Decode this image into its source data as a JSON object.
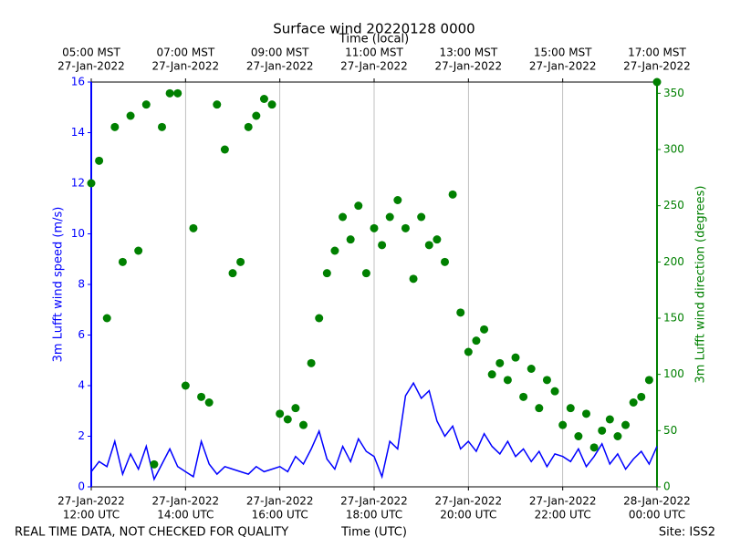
{
  "chart_data": {
    "type": "line-scatter",
    "title": "Surface wind 20220128 0000",
    "xlabel": "Time (UTC)",
    "x2label": "Time (local)",
    "ylabel": "3m Lufft wind speed (m/s)",
    "y2label": "3m Lufft wind direction (degrees)",
    "footer_left": "REAL TIME DATA, NOT CHECKED FOR QUALITY",
    "footer_right": "Site: ISS2",
    "grid": "x",
    "xlim": [
      "2022-01-27T12:00",
      "2022-01-28T00:00"
    ],
    "xticks": [
      {
        "value": "2022-01-27T12:00",
        "label": [
          "27-Jan-2022",
          "12:00 UTC"
        ]
      },
      {
        "value": "2022-01-27T14:00",
        "label": [
          "27-Jan-2022",
          "14:00 UTC"
        ]
      },
      {
        "value": "2022-01-27T16:00",
        "label": [
          "27-Jan-2022",
          "16:00 UTC"
        ]
      },
      {
        "value": "2022-01-27T18:00",
        "label": [
          "27-Jan-2022",
          "18:00 UTC"
        ]
      },
      {
        "value": "2022-01-27T20:00",
        "label": [
          "27-Jan-2022",
          "20:00 UTC"
        ]
      },
      {
        "value": "2022-01-27T22:00",
        "label": [
          "27-Jan-2022",
          "22:00 UTC"
        ]
      },
      {
        "value": "2022-01-28T00:00",
        "label": [
          "28-Jan-2022",
          "00:00 UTC"
        ]
      }
    ],
    "x2ticks": [
      {
        "value": "2022-01-27T12:00",
        "label": [
          "05:00 MST",
          "27-Jan-2022"
        ]
      },
      {
        "value": "2022-01-27T14:00",
        "label": [
          "07:00 MST",
          "27-Jan-2022"
        ]
      },
      {
        "value": "2022-01-27T16:00",
        "label": [
          "09:00 MST",
          "27-Jan-2022"
        ]
      },
      {
        "value": "2022-01-27T18:00",
        "label": [
          "11:00 MST",
          "27-Jan-2022"
        ]
      },
      {
        "value": "2022-01-27T20:00",
        "label": [
          "13:00 MST",
          "27-Jan-2022"
        ]
      },
      {
        "value": "2022-01-27T22:00",
        "label": [
          "15:00 MST",
          "27-Jan-2022"
        ]
      },
      {
        "value": "2022-01-28T00:00",
        "label": [
          "17:00 MST",
          "27-Jan-2022"
        ]
      }
    ],
    "ylim": [
      0,
      16
    ],
    "yticks": [
      0,
      2,
      4,
      6,
      8,
      10,
      12,
      14,
      16
    ],
    "y2lim": [
      0,
      360
    ],
    "y2ticks": [
      0,
      50,
      100,
      150,
      200,
      250,
      300,
      350
    ],
    "x": [
      "2022-01-27T12:00",
      "2022-01-27T12:10",
      "2022-01-27T12:20",
      "2022-01-27T12:30",
      "2022-01-27T12:40",
      "2022-01-27T12:50",
      "2022-01-27T13:00",
      "2022-01-27T13:10",
      "2022-01-27T13:20",
      "2022-01-27T13:30",
      "2022-01-27T13:40",
      "2022-01-27T13:50",
      "2022-01-27T14:00",
      "2022-01-27T14:10",
      "2022-01-27T14:20",
      "2022-01-27T14:30",
      "2022-01-27T14:40",
      "2022-01-27T14:50",
      "2022-01-27T15:00",
      "2022-01-27T15:10",
      "2022-01-27T15:20",
      "2022-01-27T15:30",
      "2022-01-27T15:40",
      "2022-01-27T15:50",
      "2022-01-27T16:00",
      "2022-01-27T16:10",
      "2022-01-27T16:20",
      "2022-01-27T16:30",
      "2022-01-27T16:40",
      "2022-01-27T16:50",
      "2022-01-27T17:00",
      "2022-01-27T17:10",
      "2022-01-27T17:20",
      "2022-01-27T17:30",
      "2022-01-27T17:40",
      "2022-01-27T17:50",
      "2022-01-27T18:00",
      "2022-01-27T18:10",
      "2022-01-27T18:20",
      "2022-01-27T18:30",
      "2022-01-27T18:40",
      "2022-01-27T18:50",
      "2022-01-27T19:00",
      "2022-01-27T19:10",
      "2022-01-27T19:20",
      "2022-01-27T19:30",
      "2022-01-27T19:40",
      "2022-01-27T19:50",
      "2022-01-27T20:00",
      "2022-01-27T20:10",
      "2022-01-27T20:20",
      "2022-01-27T20:30",
      "2022-01-27T20:40",
      "2022-01-27T20:50",
      "2022-01-27T21:00",
      "2022-01-27T21:10",
      "2022-01-27T21:20",
      "2022-01-27T21:30",
      "2022-01-27T21:40",
      "2022-01-27T21:50",
      "2022-01-27T22:00",
      "2022-01-27T22:10",
      "2022-01-27T22:20",
      "2022-01-27T22:30",
      "2022-01-27T22:40",
      "2022-01-27T22:50",
      "2022-01-27T23:00",
      "2022-01-27T23:10",
      "2022-01-27T23:20",
      "2022-01-27T23:30",
      "2022-01-27T23:40",
      "2022-01-27T23:50",
      "2022-01-28T00:00"
    ],
    "series": [
      {
        "name": "3m Lufft wind speed",
        "color": "#0000ff",
        "axis": "y",
        "values": [
          0.6,
          1.0,
          0.8,
          1.8,
          0.5,
          1.3,
          0.7,
          1.6,
          0.3,
          0.9,
          1.5,
          0.8,
          0.6,
          0.4,
          1.8,
          0.9,
          0.5,
          0.8,
          0.7,
          0.6,
          0.5,
          0.8,
          0.6,
          0.7,
          0.8,
          0.6,
          1.2,
          0.9,
          1.5,
          2.2,
          1.1,
          0.7,
          1.6,
          1.0,
          1.9,
          1.4,
          1.2,
          0.4,
          1.8,
          1.5,
          3.6,
          4.1,
          3.5,
          3.8,
          2.6,
          2.0,
          2.4,
          1.5,
          1.8,
          1.4,
          2.1,
          1.6,
          1.3,
          1.8,
          1.2,
          1.5,
          1.0,
          1.4,
          0.8,
          1.3,
          1.2,
          1.0,
          1.5,
          0.8,
          1.2,
          1.7,
          0.9,
          1.3,
          0.7,
          1.1,
          1.4,
          0.9,
          1.6
        ]
      },
      {
        "name": "3m Lufft wind direction",
        "color": "#008000",
        "axis": "y2",
        "values": [
          270,
          290,
          150,
          320,
          200,
          330,
          210,
          340,
          20,
          320,
          350,
          350,
          90,
          230,
          80,
          75,
          340,
          300,
          190,
          200,
          320,
          330,
          345,
          340,
          65,
          60,
          70,
          55,
          110,
          150,
          190,
          210,
          240,
          220,
          250,
          190,
          230,
          215,
          240,
          255,
          230,
          185,
          240,
          215,
          220,
          200,
          260,
          155,
          120,
          130,
          140,
          100,
          110,
          95,
          115,
          80,
          105,
          70,
          95,
          85,
          55,
          70,
          45,
          65,
          35,
          50,
          60,
          45,
          55,
          75,
          80,
          95,
          360
        ]
      }
    ]
  }
}
